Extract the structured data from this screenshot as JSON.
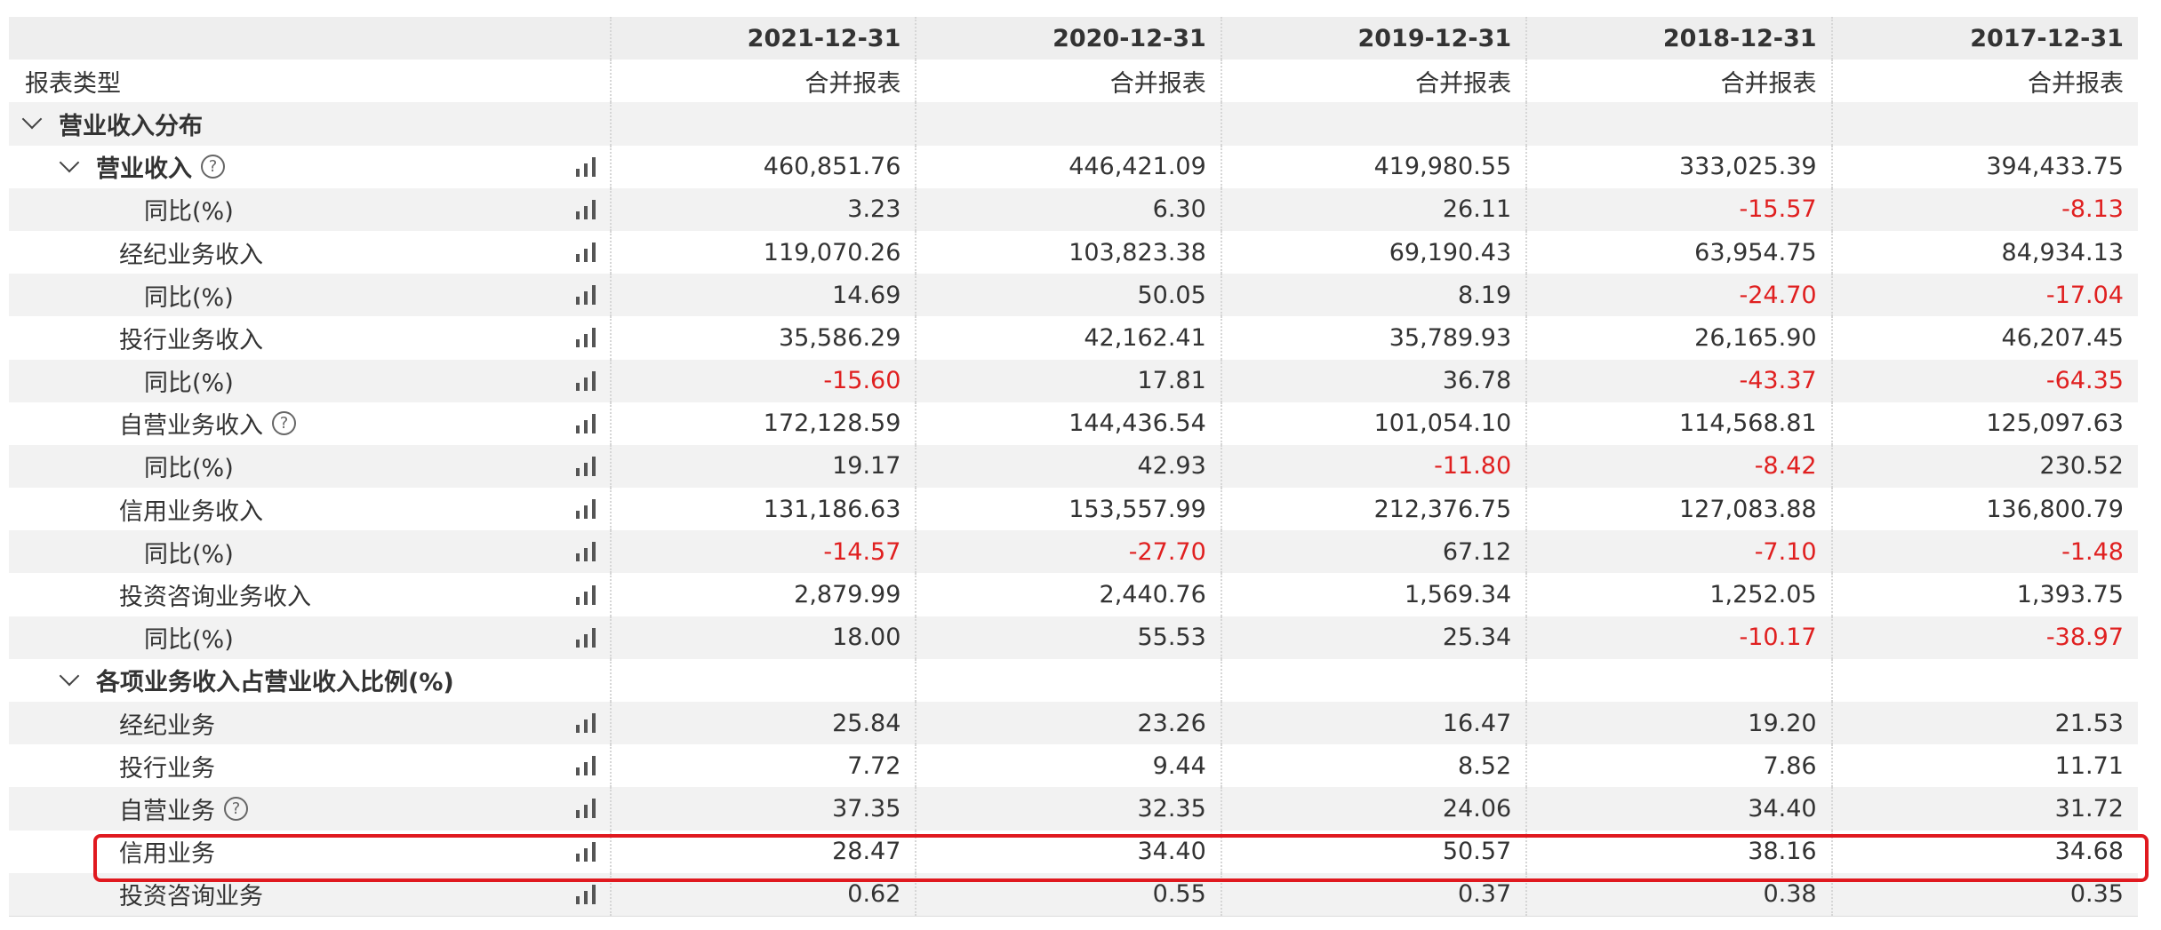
{
  "header": {
    "dates": [
      "2021-12-31",
      "2020-12-31",
      "2019-12-31",
      "2018-12-31",
      "2017-12-31"
    ]
  },
  "report_type": {
    "label": "报表类型",
    "values": [
      "合并报表",
      "合并报表",
      "合并报表",
      "合并报表",
      "合并报表"
    ]
  },
  "sections": [
    {
      "label": "营业收入分布",
      "rows": [
        {
          "label": "营业收入",
          "level": 1,
          "bold": true,
          "expand": true,
          "help": true,
          "values": [
            "460,851.76",
            "446,421.09",
            "419,980.55",
            "333,025.39",
            "394,433.75"
          ]
        },
        {
          "label": "同比(%)",
          "level": 3,
          "values": [
            "3.23",
            "6.30",
            "26.11",
            "-15.57",
            "-8.13"
          ]
        },
        {
          "label": "经纪业务收入",
          "level": 2,
          "values": [
            "119,070.26",
            "103,823.38",
            "69,190.43",
            "63,954.75",
            "84,934.13"
          ]
        },
        {
          "label": "同比(%)",
          "level": 3,
          "values": [
            "14.69",
            "50.05",
            "8.19",
            "-24.70",
            "-17.04"
          ]
        },
        {
          "label": "投行业务收入",
          "level": 2,
          "values": [
            "35,586.29",
            "42,162.41",
            "35,789.93",
            "26,165.90",
            "46,207.45"
          ]
        },
        {
          "label": "同比(%)",
          "level": 3,
          "values": [
            "-15.60",
            "17.81",
            "36.78",
            "-43.37",
            "-64.35"
          ]
        },
        {
          "label": "自营业务收入",
          "level": 2,
          "help": true,
          "values": [
            "172,128.59",
            "144,436.54",
            "101,054.10",
            "114,568.81",
            "125,097.63"
          ]
        },
        {
          "label": "同比(%)",
          "level": 3,
          "values": [
            "19.17",
            "42.93",
            "-11.80",
            "-8.42",
            "230.52"
          ]
        },
        {
          "label": "信用业务收入",
          "level": 2,
          "values": [
            "131,186.63",
            "153,557.99",
            "212,376.75",
            "127,083.88",
            "136,800.79"
          ]
        },
        {
          "label": "同比(%)",
          "level": 3,
          "values": [
            "-14.57",
            "-27.70",
            "67.12",
            "-7.10",
            "-1.48"
          ]
        },
        {
          "label": "投资咨询业务收入",
          "level": 2,
          "values": [
            "2,879.99",
            "2,440.76",
            "1,569.34",
            "1,252.05",
            "1,393.75"
          ]
        },
        {
          "label": "同比(%)",
          "level": 3,
          "values": [
            "18.00",
            "55.53",
            "25.34",
            "-10.17",
            "-38.97"
          ]
        }
      ]
    },
    {
      "label": "各项业务收入占营业收入比例(%)",
      "rows": [
        {
          "label": "经纪业务",
          "level": 2,
          "values": [
            "25.84",
            "23.26",
            "16.47",
            "19.20",
            "21.53"
          ]
        },
        {
          "label": "投行业务",
          "level": 2,
          "values": [
            "7.72",
            "9.44",
            "8.52",
            "7.86",
            "11.71"
          ]
        },
        {
          "label": "自营业务",
          "level": 2,
          "help": true,
          "values": [
            "37.35",
            "32.35",
            "24.06",
            "34.40",
            "31.72"
          ]
        },
        {
          "label": "信用业务",
          "level": 2,
          "highlight": true,
          "values": [
            "28.47",
            "34.40",
            "50.57",
            "38.16",
            "34.68"
          ]
        },
        {
          "label": "投资咨询业务",
          "level": 2,
          "values": [
            "0.62",
            "0.55",
            "0.37",
            "0.38",
            "0.35"
          ]
        }
      ]
    }
  ],
  "colors": {
    "negative": "#e02020",
    "highlight_border": "#e0191f",
    "stripe": "#f2f2f2"
  },
  "icons": {
    "expand": "chevron-down-icon",
    "help": "question-circle-icon",
    "chart": "bar-chart-icon"
  },
  "help_glyph": "?"
}
